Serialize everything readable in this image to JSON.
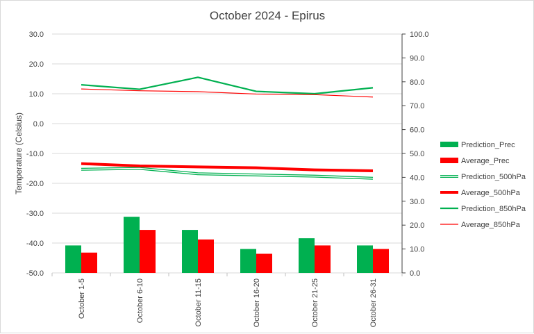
{
  "chart_data": {
    "type": "bar",
    "title": "October 2024 - Epirus",
    "ylabel": "Temperature  (Celsius)",
    "y2label": "",
    "categories": [
      "October 1-5",
      "October 6-10",
      "October 11-15",
      "October 16-20",
      "October 21-25",
      "October 26-31"
    ],
    "ylim": [
      -50,
      30
    ],
    "yticks": [
      "30.0",
      "20.0",
      "10.0",
      "0.0",
      "-10.0",
      "-20.0",
      "-30.0",
      "-40.0",
      "-50.0"
    ],
    "y2lim": [
      0,
      100
    ],
    "y2ticks": [
      "100.0",
      "90.0",
      "80.0",
      "70.0",
      "60.0",
      "50.0",
      "40.0",
      "30.0",
      "20.0",
      "10.0",
      "0.0"
    ],
    "grid": true,
    "legend_position": "right",
    "series": [
      {
        "name": "Prediction_Prec",
        "kind": "bar",
        "axis": "right",
        "color": "#00b050",
        "values": [
          11.5,
          23.5,
          18.0,
          10.0,
          14.5,
          11.5
        ]
      },
      {
        "name": "Average_Prec",
        "kind": "bar",
        "axis": "right",
        "color": "#ff0000",
        "values": [
          8.5,
          18.0,
          14.0,
          8.0,
          11.5,
          10.0
        ]
      },
      {
        "name": "Prediction_500hPa",
        "kind": "line",
        "style": "double",
        "axis": "left",
        "color": "#00b050",
        "values": [
          -15.3,
          -15.0,
          -16.8,
          -17.2,
          -17.6,
          -18.3
        ]
      },
      {
        "name": "Average_500hPa",
        "kind": "line",
        "style": "thick",
        "axis": "left",
        "color": "#ff0000",
        "values": [
          -13.4,
          -14.2,
          -14.5,
          -14.8,
          -15.5,
          -15.8
        ]
      },
      {
        "name": "Prediction_850hPa",
        "kind": "line",
        "style": "medium",
        "axis": "left",
        "color": "#00b050",
        "values": [
          13.0,
          11.5,
          15.5,
          10.8,
          10.0,
          12.0
        ]
      },
      {
        "name": "Average_850hPa",
        "kind": "line",
        "style": "thin",
        "axis": "left",
        "color": "#ff0000",
        "values": [
          11.6,
          11.0,
          10.7,
          9.9,
          9.7,
          8.9
        ]
      }
    ]
  }
}
